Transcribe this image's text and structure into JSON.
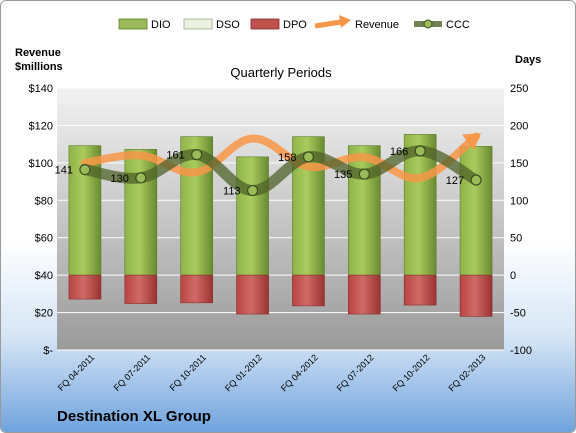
{
  "chart_data": {
    "type": "bar",
    "title": "Quarterly Periods",
    "company": "Destination XL Group",
    "left_axis_label": "Revenue\n$millions",
    "right_axis_label": "Days",
    "left_axis": {
      "min": 0,
      "max": 140,
      "step": 20,
      "ticks": [
        "$-",
        "$20",
        "$40",
        "$60",
        "$80",
        "$100",
        "$120",
        "$140"
      ]
    },
    "right_axis": {
      "min": -100,
      "max": 250,
      "step": 50,
      "ticks": [
        "-100",
        "-50",
        "0",
        "50",
        "100",
        "150",
        "200",
        "250"
      ]
    },
    "categories": [
      "FQ 04-2011",
      "FQ 07-2011",
      "FQ 10-2011",
      "FQ 01-2012",
      "FQ 04-2012",
      "FQ 07-2012",
      "FQ 10-2012",
      "FQ 02-2013"
    ],
    "legend": [
      "DIO",
      "DSO",
      "DPO",
      "Revenue",
      "CCC"
    ],
    "legend_position": "top",
    "series": [
      {
        "name": "DIO",
        "axis": "right",
        "color": "#77933c",
        "values": [
          173,
          168,
          185,
          158,
          185,
          173,
          188,
          172
        ]
      },
      {
        "name": "DSO",
        "axis": "right",
        "color": "#ebf1de",
        "values": [
          0,
          0,
          0,
          0,
          0,
          0,
          0,
          0
        ]
      },
      {
        "name": "DPO",
        "axis": "right",
        "color": "#c0504d",
        "values": [
          -32,
          -38,
          -37,
          -52,
          -41,
          -52,
          -40,
          -55
        ]
      },
      {
        "name": "Revenue",
        "axis": "left",
        "color": "#f79646",
        "values": [
          100,
          104,
          95,
          113,
          98,
          103,
          92,
          114
        ]
      },
      {
        "name": "CCC",
        "axis": "right",
        "color": "#4f6228",
        "values": [
          141,
          130,
          161,
          113,
          158,
          135,
          166,
          127
        ]
      }
    ],
    "ccc_labels": [
      "141",
      "130",
      "161",
      "113",
      "158",
      "135",
      "166",
      "127"
    ],
    "grid": true
  }
}
